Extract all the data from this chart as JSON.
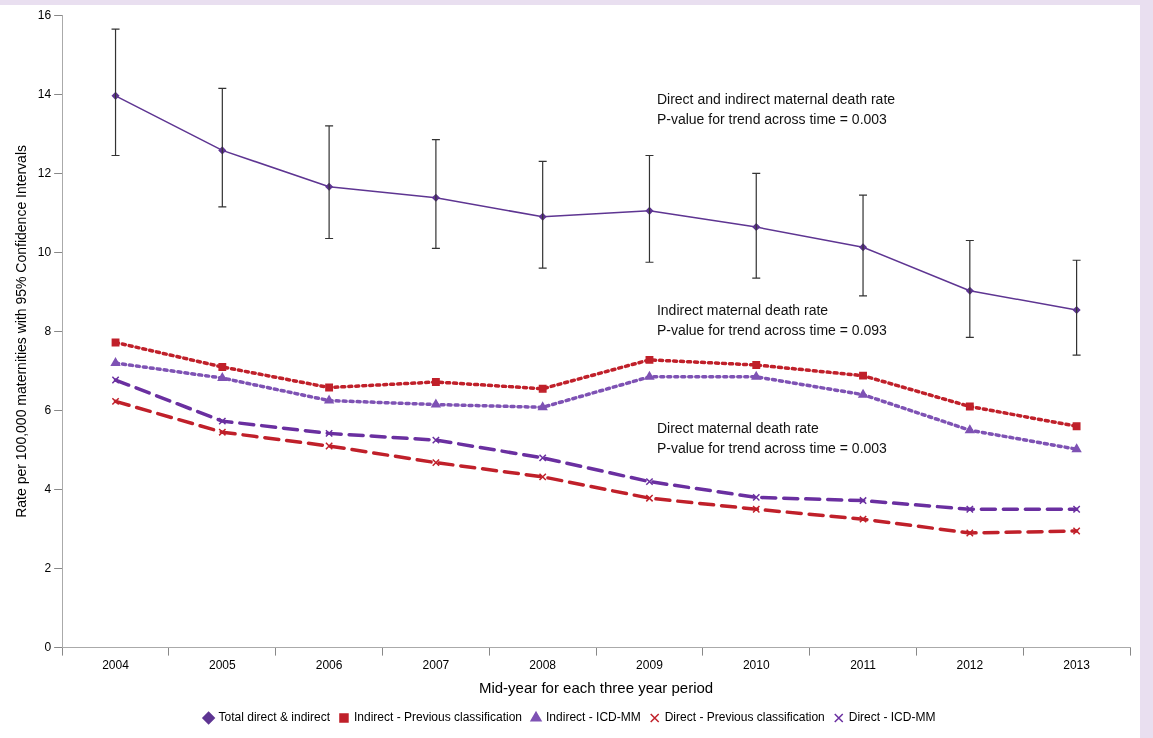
{
  "chart_data": {
    "type": "line",
    "xlabel": "Mid-year for each three year period",
    "ylabel": "Rate per 100,000 maternities with 95% Confidence Intervals",
    "categories": [
      "2004",
      "2005",
      "2006",
      "2007",
      "2008",
      "2009",
      "2010",
      "2011",
      "2012",
      "2013"
    ],
    "ylim": [
      0,
      16
    ],
    "yticks": [
      0,
      2,
      4,
      6,
      8,
      10,
      12,
      14,
      16
    ],
    "legend": "bottom",
    "series": [
      {
        "name": "Total direct & indirect",
        "color": "#5e3592",
        "marker": "diamond",
        "line_style": "solid",
        "values": [
          13.96,
          12.58,
          11.66,
          11.38,
          10.9,
          11.05,
          10.64,
          10.13,
          9.03,
          8.54
        ],
        "errors": [
          [
            12.45,
            15.65
          ],
          [
            11.15,
            14.15
          ],
          [
            10.35,
            13.2
          ],
          [
            10.1,
            12.85
          ],
          [
            9.6,
            12.3
          ],
          [
            9.75,
            12.45
          ],
          [
            9.35,
            12.0
          ],
          [
            8.9,
            11.45
          ],
          [
            7.85,
            10.3
          ],
          [
            7.4,
            9.8
          ]
        ]
      },
      {
        "name": "Indirect - Previous classification",
        "color": "#c0202a",
        "marker": "square",
        "line_style": "dotted",
        "values": [
          7.72,
          7.1,
          6.58,
          6.72,
          6.55,
          7.28,
          7.15,
          6.88,
          6.1,
          5.6
        ]
      },
      {
        "name": "Indirect - ICD-MM",
        "color": "#7e52b4",
        "marker": "triangle",
        "line_style": "dotted",
        "values": [
          7.2,
          6.82,
          6.25,
          6.15,
          6.08,
          6.85,
          6.85,
          6.4,
          5.5,
          5.02
        ]
      },
      {
        "name": "Direct - Previous classification",
        "color": "#c0202a",
        "marker": "cross",
        "line_style": "dashed",
        "values": [
          6.23,
          5.45,
          5.1,
          4.68,
          4.32,
          3.78,
          3.5,
          3.25,
          2.9,
          2.95
        ]
      },
      {
        "name": "Direct - ICD-MM",
        "color": "#6a2fa0",
        "marker": "cross",
        "line_style": "dashed",
        "values": [
          6.77,
          5.73,
          5.42,
          5.25,
          4.8,
          4.2,
          3.8,
          3.72,
          3.5,
          3.5
        ]
      }
    ],
    "annotations": [
      "Direct and indirect maternal death rate\nP-value for trend across time = 0.003",
      "Indirect maternal death rate\nP-value for trend across time = 0.093",
      "Direct maternal death rate\nP-value for trend across time = 0.003"
    ]
  }
}
